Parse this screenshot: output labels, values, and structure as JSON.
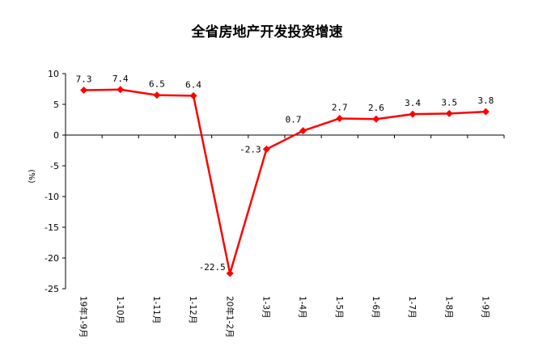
{
  "chart_data": {
    "type": "line",
    "title": "全省房地产开发投资增速",
    "ylabel": "(%)",
    "ylim": [
      -25,
      10
    ],
    "yticks": [
      10,
      5,
      0,
      -5,
      -10,
      -15,
      -20,
      -25
    ],
    "grid": false,
    "categories": [
      "19年1-9月",
      "1-10月",
      "1-11月",
      "1-12月",
      "20年1-2月",
      "1-3月",
      "1-4月",
      "1-5月",
      "1-6月",
      "1-7月",
      "1-8月",
      "1-9月"
    ],
    "series": [
      {
        "values": [
          7.3,
          7.4,
          6.5,
          6.4,
          -22.5,
          -2.3,
          0.7,
          2.7,
          2.6,
          3.4,
          3.5,
          3.8
        ],
        "labels": [
          "7.3",
          "7.4",
          "6.5",
          "6.4",
          "-22.5",
          "-2.3",
          "0.7",
          "2.7",
          "2.6",
          "3.4",
          "3.5",
          "3.8"
        ],
        "color": "#ff0000"
      }
    ]
  }
}
